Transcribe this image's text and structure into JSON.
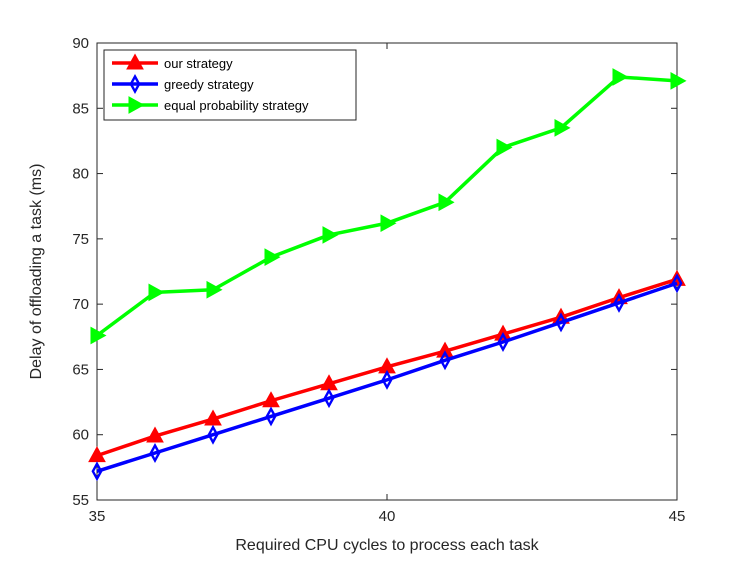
{
  "chart_data": {
    "type": "line",
    "title": "",
    "xlabel": "Required CPU cycles to process each task",
    "ylabel": "Delay of offloading a task (ms)",
    "xlim": [
      35,
      45
    ],
    "ylim": [
      55,
      90
    ],
    "xticks": [
      35,
      40,
      45
    ],
    "yticks": [
      55,
      60,
      65,
      70,
      75,
      80,
      85,
      90
    ],
    "grid": false,
    "legend_position": "top-left",
    "x": [
      35,
      36,
      37,
      38,
      39,
      40,
      41,
      42,
      43,
      44,
      45
    ],
    "series": [
      {
        "name": "our strategy",
        "color": "#ff0000",
        "marker": "triangle-up",
        "values": [
          58.4,
          59.9,
          61.2,
          62.6,
          63.9,
          65.2,
          66.4,
          67.7,
          69.0,
          70.5,
          71.9
        ]
      },
      {
        "name": "greedy strategy",
        "color": "#0000ff",
        "marker": "diamond",
        "values": [
          57.2,
          58.6,
          60.0,
          61.4,
          62.8,
          64.2,
          65.7,
          67.1,
          68.6,
          70.1,
          71.6
        ]
      },
      {
        "name": "equal probability strategy",
        "color": "#00ff00",
        "marker": "triangle-right",
        "values": [
          67.6,
          70.9,
          71.1,
          73.6,
          75.3,
          76.2,
          77.8,
          82.0,
          83.5,
          87.4,
          87.1
        ]
      }
    ]
  }
}
